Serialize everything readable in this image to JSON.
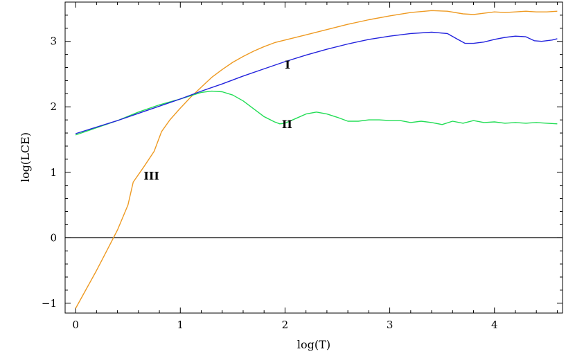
{
  "chart_data": {
    "type": "line",
    "xlabel": "log(T)",
    "ylabel": "log(LCE)",
    "xlim": [
      -0.1,
      4.65
    ],
    "ylim": [
      -1.15,
      3.6
    ],
    "xticks": [
      0,
      1,
      2,
      3,
      4
    ],
    "yticks": [
      -1,
      0,
      1,
      2,
      3
    ],
    "minor_step": 0.2,
    "grid": false,
    "reference_line_y": 0,
    "series": [
      {
        "name": "I",
        "color": "#2222dd",
        "label_at": [
          2.0,
          2.65
        ],
        "points": [
          [
            0,
            1.59
          ],
          [
            0.2,
            1.69
          ],
          [
            0.4,
            1.79
          ],
          [
            0.6,
            1.9
          ],
          [
            0.8,
            2.01
          ],
          [
            1.0,
            2.12
          ],
          [
            1.2,
            2.24
          ],
          [
            1.4,
            2.35
          ],
          [
            1.6,
            2.47
          ],
          [
            1.8,
            2.58
          ],
          [
            2.0,
            2.69
          ],
          [
            2.2,
            2.79
          ],
          [
            2.4,
            2.88
          ],
          [
            2.6,
            2.96
          ],
          [
            2.8,
            3.03
          ],
          [
            3.0,
            3.08
          ],
          [
            3.2,
            3.12
          ],
          [
            3.4,
            3.14
          ],
          [
            3.55,
            3.12
          ],
          [
            3.65,
            3.03
          ],
          [
            3.72,
            2.97
          ],
          [
            3.8,
            2.97
          ],
          [
            3.9,
            2.99
          ],
          [
            4.0,
            3.03
          ],
          [
            4.1,
            3.06
          ],
          [
            4.2,
            3.08
          ],
          [
            4.3,
            3.07
          ],
          [
            4.38,
            3.01
          ],
          [
            4.45,
            3.0
          ],
          [
            4.55,
            3.02
          ],
          [
            4.6,
            3.04
          ]
        ]
      },
      {
        "name": "II",
        "color": "#22dd55",
        "label_at": [
          1.97,
          1.74
        ],
        "points": [
          [
            0,
            1.57
          ],
          [
            0.2,
            1.68
          ],
          [
            0.4,
            1.79
          ],
          [
            0.6,
            1.92
          ],
          [
            0.8,
            2.03
          ],
          [
            1.0,
            2.12
          ],
          [
            1.1,
            2.17
          ],
          [
            1.2,
            2.22
          ],
          [
            1.3,
            2.24
          ],
          [
            1.4,
            2.23
          ],
          [
            1.5,
            2.18
          ],
          [
            1.6,
            2.09
          ],
          [
            1.7,
            1.97
          ],
          [
            1.8,
            1.85
          ],
          [
            1.9,
            1.77
          ],
          [
            1.95,
            1.74
          ],
          [
            2.0,
            1.75
          ],
          [
            2.1,
            1.82
          ],
          [
            2.2,
            1.89
          ],
          [
            2.3,
            1.92
          ],
          [
            2.4,
            1.89
          ],
          [
            2.5,
            1.84
          ],
          [
            2.6,
            1.78
          ],
          [
            2.7,
            1.78
          ],
          [
            2.8,
            1.8
          ],
          [
            2.9,
            1.8
          ],
          [
            3.0,
            1.79
          ],
          [
            3.1,
            1.79
          ],
          [
            3.2,
            1.76
          ],
          [
            3.3,
            1.78
          ],
          [
            3.4,
            1.76
          ],
          [
            3.5,
            1.73
          ],
          [
            3.6,
            1.78
          ],
          [
            3.7,
            1.75
          ],
          [
            3.8,
            1.79
          ],
          [
            3.9,
            1.76
          ],
          [
            4.0,
            1.77
          ],
          [
            4.1,
            1.75
          ],
          [
            4.2,
            1.76
          ],
          [
            4.3,
            1.75
          ],
          [
            4.4,
            1.76
          ],
          [
            4.5,
            1.75
          ],
          [
            4.6,
            1.74
          ]
        ]
      },
      {
        "name": "III",
        "color": "#ee9a22",
        "label_at": [
          0.65,
          0.95
        ],
        "points": [
          [
            0,
            -1.08
          ],
          [
            0.1,
            -0.79
          ],
          [
            0.2,
            -0.5
          ],
          [
            0.3,
            -0.19
          ],
          [
            0.4,
            0.12
          ],
          [
            0.5,
            0.5
          ],
          [
            0.55,
            0.85
          ],
          [
            0.65,
            1.08
          ],
          [
            0.75,
            1.32
          ],
          [
            0.82,
            1.62
          ],
          [
            0.9,
            1.8
          ],
          [
            1.0,
            1.98
          ],
          [
            1.1,
            2.15
          ],
          [
            1.2,
            2.3
          ],
          [
            1.3,
            2.45
          ],
          [
            1.4,
            2.57
          ],
          [
            1.5,
            2.68
          ],
          [
            1.6,
            2.77
          ],
          [
            1.7,
            2.85
          ],
          [
            1.8,
            2.92
          ],
          [
            1.9,
            2.98
          ],
          [
            2.0,
            3.02
          ],
          [
            2.2,
            3.1
          ],
          [
            2.4,
            3.18
          ],
          [
            2.6,
            3.26
          ],
          [
            2.8,
            3.33
          ],
          [
            3.0,
            3.39
          ],
          [
            3.2,
            3.44
          ],
          [
            3.4,
            3.47
          ],
          [
            3.55,
            3.46
          ],
          [
            3.7,
            3.42
          ],
          [
            3.8,
            3.41
          ],
          [
            3.9,
            3.43
          ],
          [
            4.0,
            3.45
          ],
          [
            4.1,
            3.44
          ],
          [
            4.2,
            3.45
          ],
          [
            4.3,
            3.46
          ],
          [
            4.4,
            3.45
          ],
          [
            4.5,
            3.45
          ],
          [
            4.6,
            3.46
          ]
        ]
      }
    ]
  }
}
